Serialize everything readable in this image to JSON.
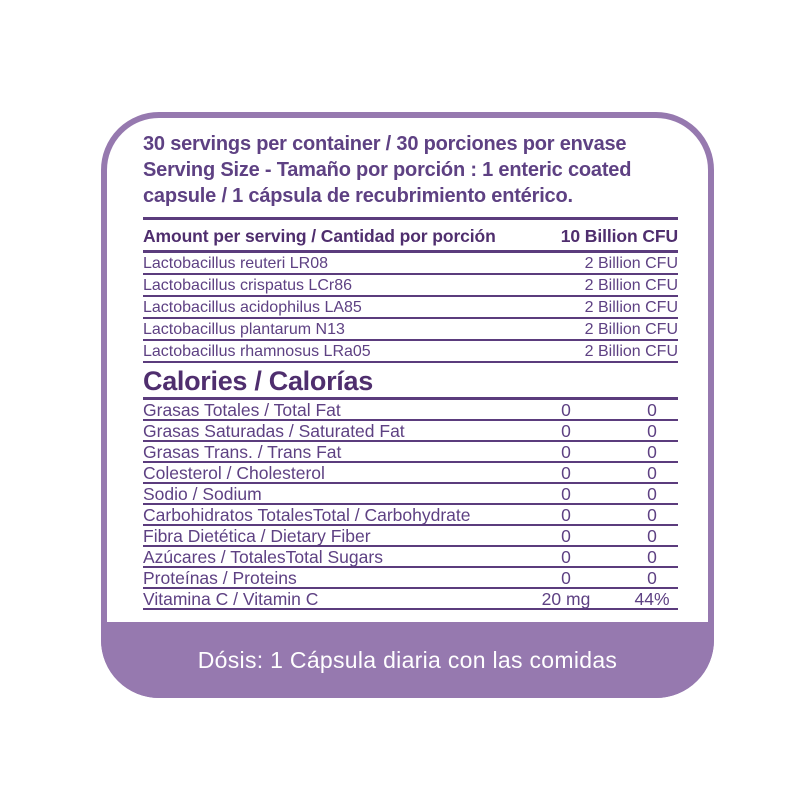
{
  "colors": {
    "accent_purple": "#9679AF",
    "text_purple": "#5E4183",
    "heading_purple": "#4F2E6E",
    "rule_purple": "#5B3C7D",
    "bar_text_white": "#FFFFFF"
  },
  "serving_info": {
    "line1": "30 servings per container  / 30 porciones por envase",
    "line2": "Serving Size  - Tamaño por porción : 1 enteric coated capsule / 1 cápsula de recubrimiento entérico."
  },
  "amount_header": {
    "label": "Amount per serving / Cantidad por porción",
    "value": "10 Billion CFU"
  },
  "probiotics": [
    {
      "name": "Lactobacillus reuteri LR08",
      "amount": "2 Billion CFU"
    },
    {
      "name": "Lactobacillus crispatus LCr86",
      "amount": "2 Billion CFU"
    },
    {
      "name": "Lactobacillus acidophilus LA85",
      "amount": "2 Billion CFU"
    },
    {
      "name": "Lactobacillus plantarum N13",
      "amount": "2 Billion CFU"
    },
    {
      "name": "Lactobacillus rhamnosus LRa05",
      "amount": "2 Billion CFU"
    }
  ],
  "calories_title": "Calories / Calorías",
  "nutrients": [
    {
      "label": "Grasas Totales / Total Fat",
      "amount": "0",
      "dv": "0"
    },
    {
      "label": "Grasas Saturadas / Saturated Fat",
      "amount": "0",
      "dv": "0"
    },
    {
      "label": "Grasas Trans. / Trans Fat",
      "amount": "0",
      "dv": "0"
    },
    {
      "label": "Colesterol / Cholesterol",
      "amount": "0",
      "dv": "0"
    },
    {
      "label": "Sodio / Sodium",
      "amount": "0",
      "dv": "0"
    },
    {
      "label": "Carbohidratos TotalesTotal / Carbohydrate",
      "amount": "0",
      "dv": "0"
    },
    {
      "label": "Fibra Dietética / Dietary Fiber",
      "amount": "0",
      "dv": "0"
    },
    {
      "label": "Azúcares / TotalesTotal Sugars",
      "amount": "0",
      "dv": "0"
    },
    {
      "label": "Proteínas / Proteins",
      "amount": "0",
      "dv": "0"
    },
    {
      "label": "Vitamina C / Vitamin C",
      "amount": "20 mg",
      "dv": "44%"
    }
  ],
  "dosage_text": "Dósis: 1 Cápsula diaria con las comidas"
}
